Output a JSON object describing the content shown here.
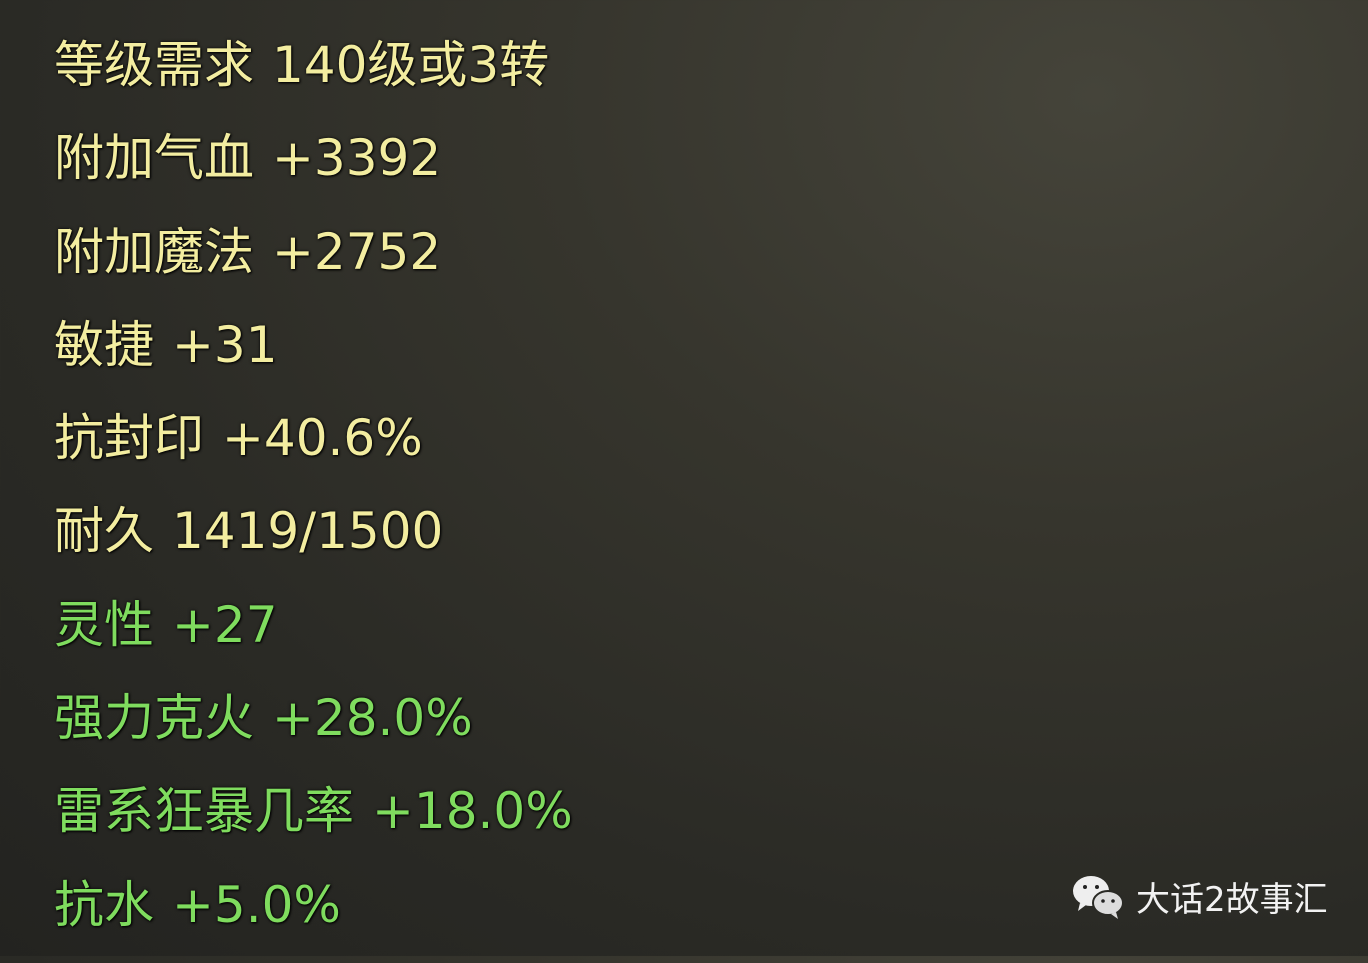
{
  "colors": {
    "base": "#f3eda0",
    "bonus": "#7fdc5e",
    "watermark": "#f2f2f2"
  },
  "stats": [
    {
      "label": "等级需求",
      "value": "140级或3转",
      "kind": "base"
    },
    {
      "label": "附加气血",
      "value": "+3392",
      "kind": "base"
    },
    {
      "label": "附加魔法",
      "value": "+2752",
      "kind": "base"
    },
    {
      "label": "敏捷",
      "value": "+31",
      "kind": "base"
    },
    {
      "label": "抗封印",
      "value": "+40.6%",
      "kind": "base"
    },
    {
      "label": "耐久",
      "value": "1419/1500",
      "kind": "base"
    },
    {
      "label": "灵性",
      "value": "+27",
      "kind": "bonus"
    },
    {
      "label": "强力克火",
      "value": "+28.0%",
      "kind": "bonus"
    },
    {
      "label": "雷系狂暴几率",
      "value": "+18.0%",
      "kind": "bonus"
    },
    {
      "label": "抗水",
      "value": "+5.0%",
      "kind": "bonus"
    }
  ],
  "watermark": {
    "icon": "wechat-icon",
    "text": "大话2故事汇"
  }
}
